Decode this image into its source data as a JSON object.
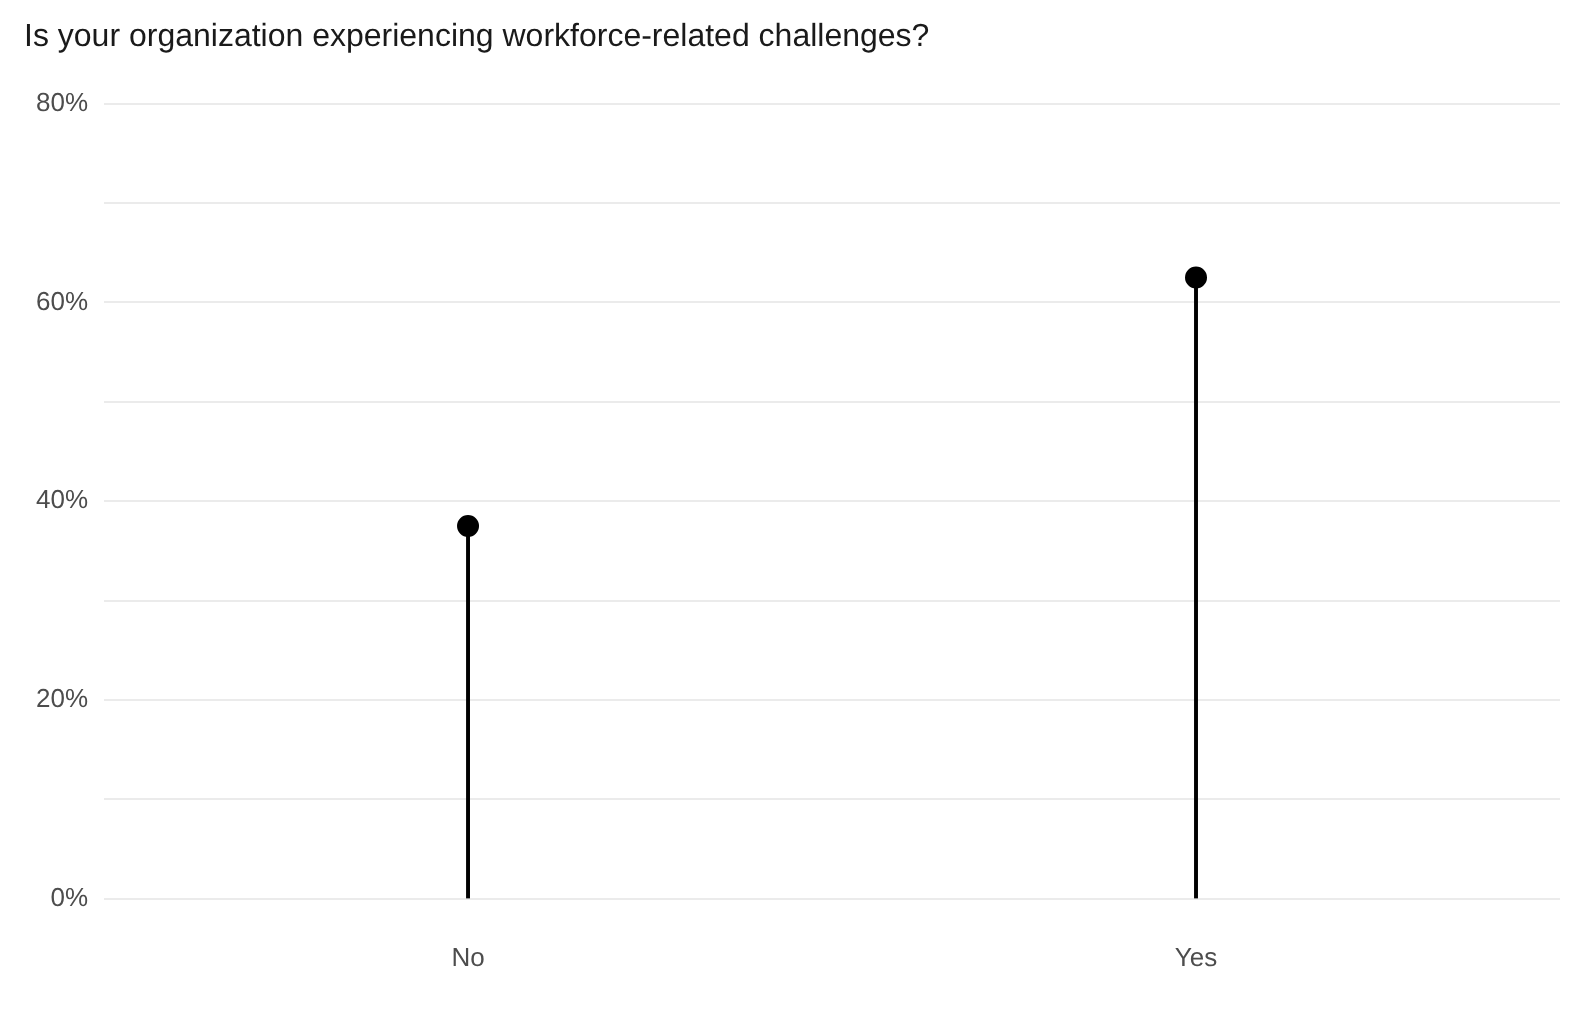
{
  "chart_data": {
    "type": "lollipop",
    "title": "Is your organization experiencing workforce-related challenges?",
    "categories": [
      "No",
      "Yes"
    ],
    "values": [
      37.5,
      62.5
    ],
    "color": "#000000",
    "ylim": [
      0,
      80
    ],
    "yticks": [
      {
        "value": 0,
        "label": "0%"
      },
      {
        "value": 10,
        "label": null
      },
      {
        "value": 20,
        "label": "20%"
      },
      {
        "value": 30,
        "label": null
      },
      {
        "value": 40,
        "label": "40%"
      },
      {
        "value": 50,
        "label": null
      },
      {
        "value": 60,
        "label": "60%"
      },
      {
        "value": 70,
        "label": null
      },
      {
        "value": 80,
        "label": "80%"
      }
    ],
    "grid": "y",
    "marker": "circle",
    "legend": false
  }
}
